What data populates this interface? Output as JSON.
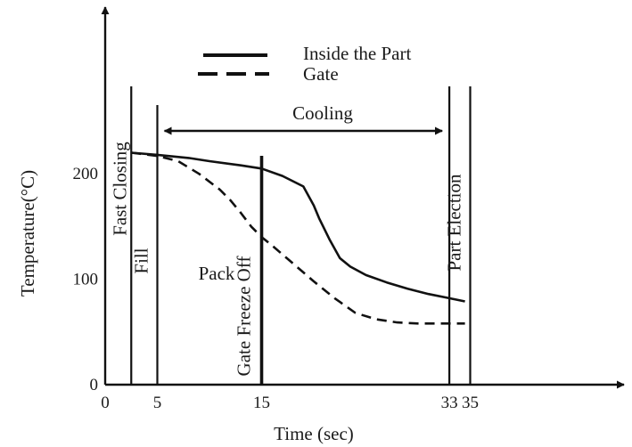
{
  "chart_data": {
    "type": "line",
    "title": "",
    "xlabel": "Time (sec)",
    "ylabel": "Temperature(°C)",
    "xlim": [
      0,
      40
    ],
    "ylim": [
      0,
      290
    ],
    "grid": false,
    "legend_position": "top-center",
    "x_ticks": [
      {
        "value": 0,
        "label": "0"
      },
      {
        "value": 5,
        "label": "5"
      },
      {
        "value": 15,
        "label": "15"
      },
      {
        "value": 33,
        "label": "33"
      },
      {
        "value": 35,
        "label": "35"
      }
    ],
    "y_ticks": [
      {
        "value": 0,
        "label": "0"
      },
      {
        "value": 100,
        "label": "100"
      },
      {
        "value": 200,
        "label": "200"
      }
    ],
    "series": [
      {
        "name": "Inside the Part",
        "style": "solid",
        "x": [
          2.5,
          5,
          8,
          10,
          13,
          15,
          17,
          19,
          20,
          20.5,
          21.5,
          22.5,
          23.5,
          25,
          27,
          29,
          31,
          33,
          34.5
        ],
        "y": [
          220,
          218,
          215,
          212,
          208,
          205,
          198,
          188,
          170,
          158,
          138,
          120,
          112,
          104,
          97,
          91,
          86,
          82,
          79
        ]
      },
      {
        "name": "Gate",
        "style": "dashed",
        "x": [
          2.5,
          5,
          7,
          9,
          11,
          12,
          13,
          14,
          15,
          16,
          18,
          20,
          22,
          24,
          26,
          28,
          30,
          32,
          34.5
        ],
        "y": [
          220,
          217,
          212,
          200,
          185,
          175,
          163,
          150,
          140,
          132,
          115,
          98,
          82,
          68,
          62,
          59,
          58,
          58,
          58
        ]
      }
    ],
    "phase_lines": [
      {
        "x": 2.5,
        "label": "Fast Closing"
      },
      {
        "x": 5,
        "label": "Fill"
      },
      {
        "x": 15,
        "label": "Gate Freeze Off",
        "bold": true
      },
      {
        "x": 33,
        "label": ""
      },
      {
        "x": 35,
        "label": "Part Election"
      }
    ],
    "annotations": [
      {
        "text": "Pack",
        "x": 10
      },
      {
        "text": "Cooling",
        "from_x": 5,
        "to_x": 33,
        "type": "double-arrow"
      }
    ]
  }
}
